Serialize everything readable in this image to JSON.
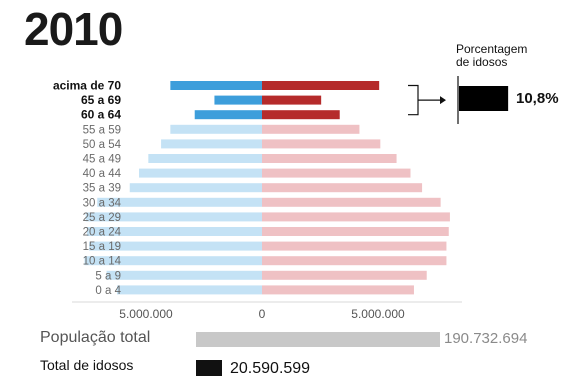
{
  "chart_data": {
    "type": "bar",
    "title": "2010",
    "categories": [
      "acima de 70",
      "65 a 69",
      "60 a 64",
      "55 a 59",
      "50 a 54",
      "45 a 49",
      "40 a 44",
      "35 a 39",
      "30 a 34",
      "25 a 29",
      "20 a 24",
      "15 a 19",
      "10 a 14",
      "5 a 9",
      "0 a 4"
    ],
    "elderly_categories": [
      "acima de 70",
      "65 a 69",
      "60 a 64"
    ],
    "series": [
      {
        "side": "left",
        "values": [
          3950000,
          2050000,
          2900000,
          3950000,
          4350000,
          4900000,
          5300000,
          5700000,
          7100000,
          7600000,
          7550000,
          7450000,
          7650000,
          6700000,
          6250000
        ]
      },
      {
        "side": "right",
        "values": [
          5050000,
          2550000,
          3350000,
          4200000,
          5100000,
          5800000,
          6400000,
          6900000,
          7700000,
          8100000,
          8050000,
          7950000,
          7950000,
          7100000,
          6550000
        ]
      }
    ],
    "xticks": [
      -5000000,
      0,
      5000000
    ],
    "xtick_labels": [
      "5.000.000",
      "0",
      "5.000.000"
    ],
    "xlim": [
      -8500000,
      8500000
    ],
    "xlabel": "",
    "ylabel": ""
  },
  "colors": {
    "elderly_left": "#3d9edb",
    "elderly_right": "#b52b2b",
    "young_left": "#c4e2f5",
    "young_right": "#efc1c4",
    "indicator": "#000000"
  },
  "elderly_share": {
    "title_line1": "Porcentagem",
    "title_line2": "de idosos",
    "value": "10,8%",
    "percent": 10.8
  },
  "totals": {
    "population_label": "População total",
    "population_value": "190.732.694",
    "population": 190732694,
    "elderly_label": "Total de idosos",
    "elderly_value": "20.590.599",
    "elderly": 20590599
  }
}
